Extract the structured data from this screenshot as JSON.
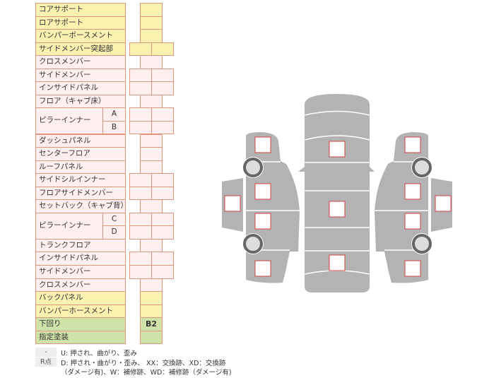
{
  "rows": [
    {
      "label": "コアサポート",
      "color": "y",
      "cells": 1
    },
    {
      "label": "ロアサポート",
      "color": "y",
      "cells": 1
    },
    {
      "label": "バンパーボースメント",
      "color": "y",
      "cells": 1
    },
    {
      "label": "サイドメンバー突起部",
      "color": "y",
      "cells": 2
    },
    {
      "label": "クロスメンバー",
      "color": "p",
      "cells": 1
    },
    {
      "label": "サイドメンバー",
      "color": "p",
      "cells": 2
    },
    {
      "label": "インサイドパネル",
      "color": "p",
      "cells": 2
    },
    {
      "label": "フロア（キャブ床）",
      "color": "p",
      "cells": 1
    },
    {
      "label": "ピラーインナー",
      "sub": "A",
      "color": "p",
      "cells": 2,
      "group": "start"
    },
    {
      "label": "",
      "sub": "B",
      "color": "p",
      "cells": 2,
      "group": "end"
    },
    {
      "label": "ダッシュパネル",
      "color": "p",
      "cells": 1
    },
    {
      "label": "センターフロア",
      "color": "p",
      "cells": 1
    },
    {
      "label": "ルーフパネル",
      "color": "p",
      "cells": 1
    },
    {
      "label": "サイドシルインナー",
      "color": "p",
      "cells": 2
    },
    {
      "label": "フロアサイドメンバー",
      "color": "p",
      "cells": 2
    },
    {
      "label": "セットバック（キャブ背）",
      "color": "p",
      "cells": 1
    },
    {
      "label": "ピラーインナー",
      "sub": "C",
      "color": "p",
      "cells": 2,
      "group": "start"
    },
    {
      "label": "",
      "sub": "D",
      "color": "p",
      "cells": 2,
      "group": "end"
    },
    {
      "label": "トランクフロア",
      "color": "p",
      "cells": 1
    },
    {
      "label": "インサイドパネル",
      "color": "p",
      "cells": 2
    },
    {
      "label": "サイドメンバー",
      "color": "p",
      "cells": 2
    },
    {
      "label": "クロスメンバー",
      "color": "p",
      "cells": 1
    },
    {
      "label": "バックパネル",
      "color": "y",
      "cells": 1
    },
    {
      "label": "バンパーホースメント",
      "color": "y",
      "cells": 1
    },
    {
      "label": "下回り",
      "color": "g",
      "cells": 1,
      "value": "B2"
    },
    {
      "label": "指定塗装",
      "color": "g",
      "cells": 1
    }
  ],
  "legend": [
    {
      "key": "-",
      "text": "U: 押され、曲がり、歪み"
    },
    {
      "key": "R点",
      "text": "D: 押され・曲がり・歪み、 XX：交換跡、XD：交換跡",
      "text2": "（ダメージ有)、W：補修跡、WD：補修跡（ダメージ有)"
    }
  ],
  "colors": {
    "yellow": "#faf0b0",
    "pink": "#fdeef0",
    "green": "#cfe2a8",
    "border": "#e0977e",
    "body": "#b3b3b3",
    "marker": "#d04040"
  }
}
